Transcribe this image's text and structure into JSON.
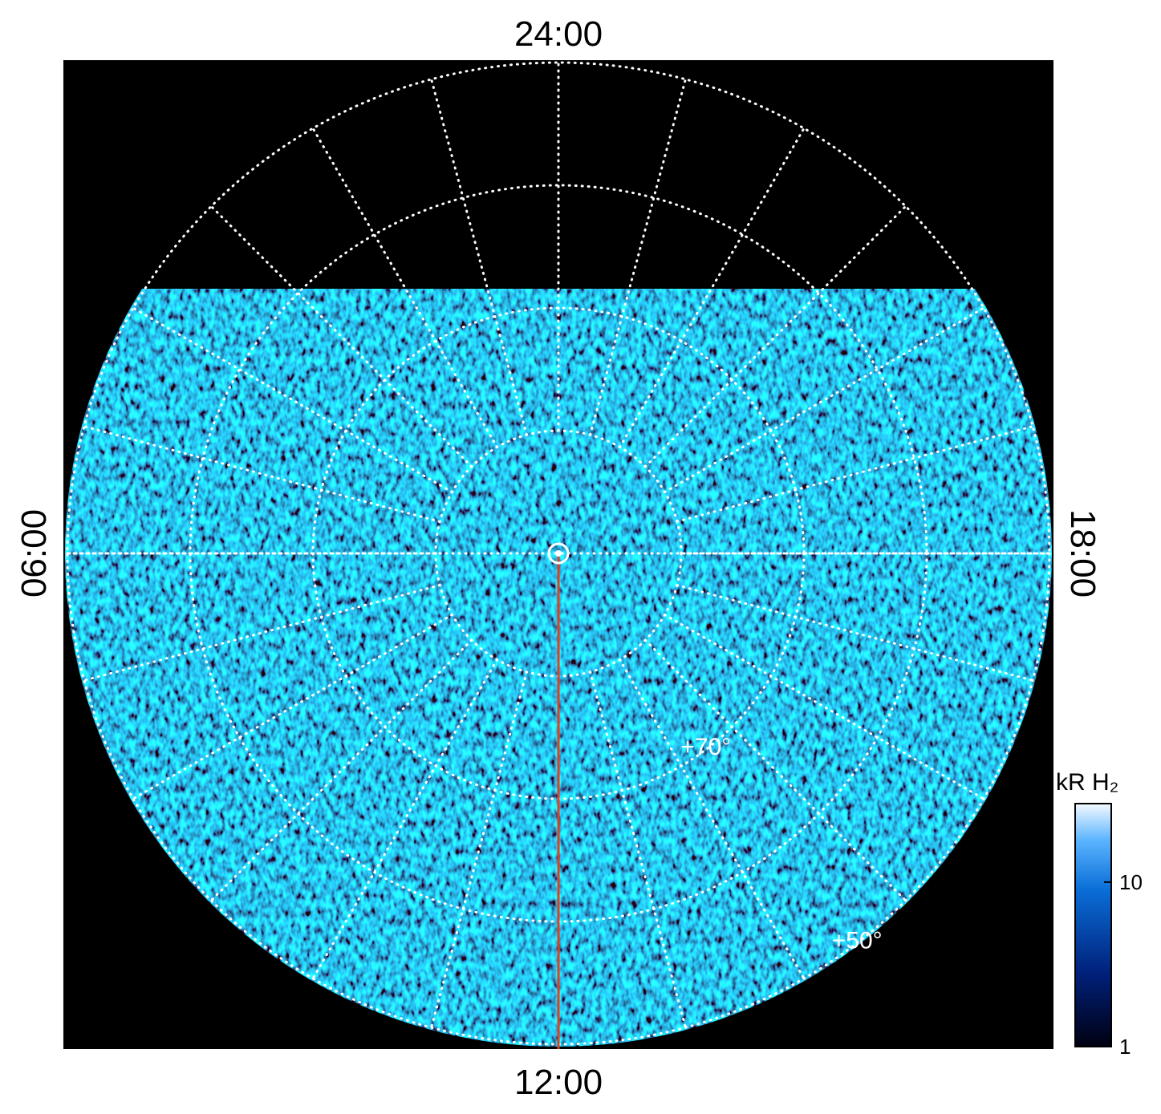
{
  "chart_data": {
    "type": "polar-map",
    "local_time_labels": {
      "top": "24:00",
      "left": "06:00",
      "right": "18:00",
      "bottom": "12:00"
    },
    "rlim": [
      90,
      50
    ],
    "lat_grid": [
      80,
      70,
      60,
      50
    ],
    "lat_labels": [
      {
        "value": 70,
        "label": "+70°"
      },
      {
        "value": 50,
        "label": "+50°"
      }
    ],
    "lon_grid_step_deg": 15,
    "colorbar": {
      "title": "kR H₂",
      "log": true,
      "clim": [
        1,
        30
      ],
      "ticks": [
        1,
        10
      ]
    }
  }
}
